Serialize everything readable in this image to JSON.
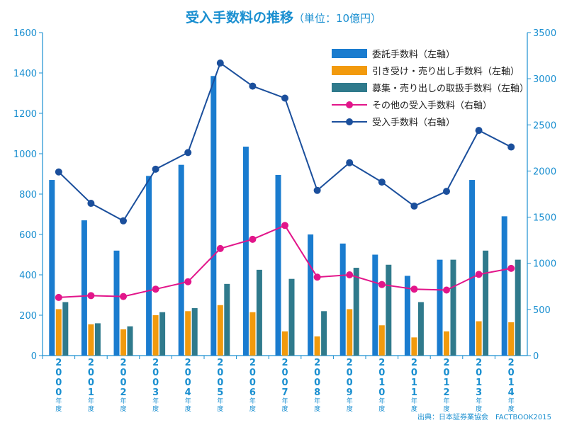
{
  "title": {
    "main": "受入手数料の推移",
    "sub": "（単位：10億円）"
  },
  "source": "出典：日本証券業協会　FACTBOOK2015",
  "colors": {
    "axis": "#1a8fd0",
    "consignment": "#1a7ccf",
    "underwriting": "#f29a0d",
    "offering": "#2f7a8c",
    "other": "#e2158a",
    "total": "#1b4f9c"
  },
  "chart_data": {
    "type": "bar",
    "categories": [
      "2000年度",
      "2001年度",
      "2002年度",
      "2003年度",
      "2004年度",
      "2005年度",
      "2006年度",
      "2007年度",
      "2008年度",
      "2009年度",
      "2010年度",
      "2011年度",
      "2012年度",
      "2013年度",
      "2014年度"
    ],
    "left_axis": {
      "ylim": [
        0,
        1600
      ],
      "ticks": [
        0,
        200,
        400,
        600,
        800,
        1000,
        1200,
        1400,
        1600
      ]
    },
    "right_axis": {
      "ylim": [
        0,
        3500
      ],
      "ticks": [
        0,
        500,
        1000,
        1500,
        2000,
        2500,
        3000,
        3500
      ]
    },
    "series": [
      {
        "name": "委託手数料（左軸）",
        "type": "bar",
        "axis": "left",
        "color_key": "consignment",
        "values": [
          870,
          670,
          520,
          890,
          945,
          1385,
          1035,
          895,
          600,
          555,
          500,
          395,
          475,
          870,
          690
        ]
      },
      {
        "name": "引き受け・売り出し手数料（左軸）",
        "type": "bar",
        "axis": "left",
        "color_key": "underwriting",
        "values": [
          230,
          155,
          130,
          200,
          220,
          250,
          215,
          120,
          95,
          230,
          150,
          90,
          120,
          170,
          165
        ]
      },
      {
        "name": "募集・売り出しの取扱手数料（左軸）",
        "type": "bar",
        "axis": "left",
        "color_key": "offering",
        "values": [
          265,
          160,
          145,
          215,
          235,
          355,
          425,
          380,
          220,
          435,
          450,
          265,
          475,
          520,
          475
        ]
      },
      {
        "name": "その他の受入手数料（右軸）",
        "type": "line",
        "axis": "right",
        "color_key": "other",
        "values": [
          630,
          650,
          640,
          720,
          800,
          1160,
          1260,
          1410,
          850,
          875,
          770,
          720,
          710,
          880,
          945
        ]
      },
      {
        "name": "受入手数料（右軸）",
        "type": "line",
        "axis": "right",
        "color_key": "total",
        "values": [
          1990,
          1650,
          1460,
          2020,
          2200,
          3170,
          2920,
          2790,
          1790,
          2090,
          1880,
          1620,
          1780,
          2440,
          2260
        ]
      }
    ],
    "legend_position": "top-right",
    "grid": false
  }
}
